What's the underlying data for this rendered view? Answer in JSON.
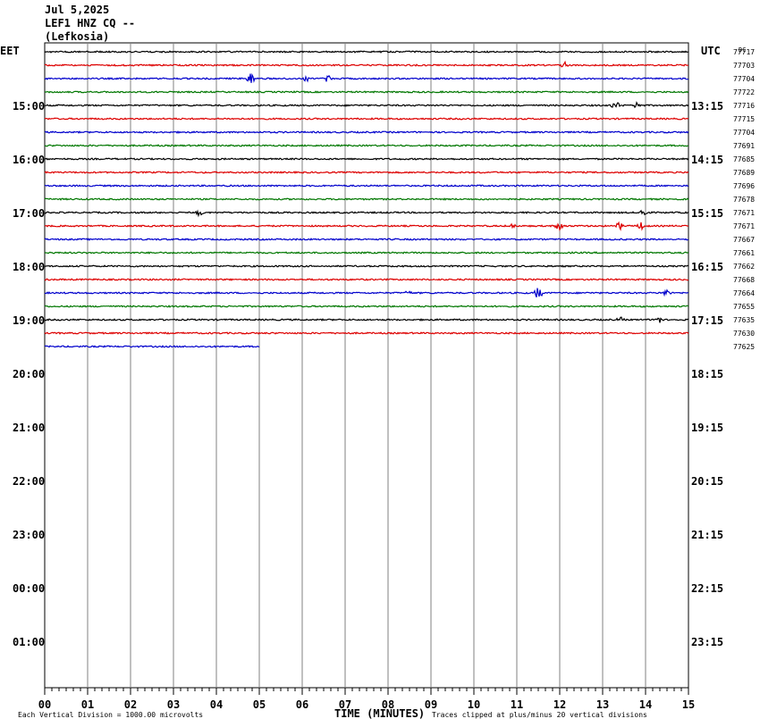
{
  "header": {
    "date": "Jul 5,2025",
    "station": "LEF1 HNZ CQ --",
    "location": "(Lefkosia)"
  },
  "left_timezone": "EET",
  "right_timezone": "UTC",
  "dc_label": "DC",
  "footer": {
    "scale_note": "Each Vertical Division = 1000.00 microvolts",
    "xlabel": "TIME (MINUTES)",
    "clip_note": "Traces clipped at plus/minus 20 vertical divisions"
  },
  "chart_data": {
    "type": "line",
    "xlabel": "TIME (MINUTES)",
    "xlim": [
      0,
      15
    ],
    "x_ticks": [
      "00",
      "01",
      "02",
      "03",
      "04",
      "05",
      "06",
      "07",
      "08",
      "09",
      "10",
      "11",
      "12",
      "13",
      "14",
      "15"
    ],
    "left_hour_labels": [
      "15:00",
      "16:00",
      "17:00",
      "18:00",
      "19:00",
      "20:00",
      "21:00",
      "22:00",
      "23:00",
      "00:00",
      "01:00"
    ],
    "right_hour_labels": [
      "13:15",
      "14:15",
      "15:15",
      "16:15",
      "17:15",
      "18:15",
      "19:15",
      "20:15",
      "21:15",
      "22:15",
      "23:15"
    ],
    "trace_colors": [
      "#000000",
      "#dd0000",
      "#0000cc",
      "#007700"
    ],
    "trace_dc_offsets": [
      77717,
      77703,
      77704,
      77722,
      77716,
      77715,
      77704,
      77691,
      77685,
      77689,
      77696,
      77678,
      77671,
      77671,
      77667,
      77661,
      77662,
      77668,
      77664,
      77655,
      77635,
      77630,
      77625
    ],
    "last_trace_end_minute": 5.0,
    "events": [
      {
        "trace": 1,
        "minute": 12.1,
        "amp": 5
      },
      {
        "trace": 2,
        "minute": 4.8,
        "amp": 7
      },
      {
        "trace": 2,
        "minute": 6.6,
        "amp": 5
      },
      {
        "trace": 2,
        "minute": 6.1,
        "amp": 3
      },
      {
        "trace": 4,
        "minute": 13.3,
        "amp": 6
      },
      {
        "trace": 4,
        "minute": 13.8,
        "amp": 4
      },
      {
        "trace": 12,
        "minute": 3.6,
        "amp": 5
      },
      {
        "trace": 12,
        "minute": 13.95,
        "amp": 7
      },
      {
        "trace": 13,
        "minute": 12.0,
        "amp": 8
      },
      {
        "trace": 13,
        "minute": 13.4,
        "amp": 5
      },
      {
        "trace": 13,
        "minute": 13.9,
        "amp": 5
      },
      {
        "trace": 13,
        "minute": 10.9,
        "amp": 3
      },
      {
        "trace": 18,
        "minute": 11.5,
        "amp": 9
      },
      {
        "trace": 18,
        "minute": 8.5,
        "amp": 4
      },
      {
        "trace": 18,
        "minute": 14.5,
        "amp": 5
      },
      {
        "trace": 20,
        "minute": 14.3,
        "amp": 5
      },
      {
        "trace": 20,
        "minute": 13.4,
        "amp": 3
      }
    ]
  }
}
